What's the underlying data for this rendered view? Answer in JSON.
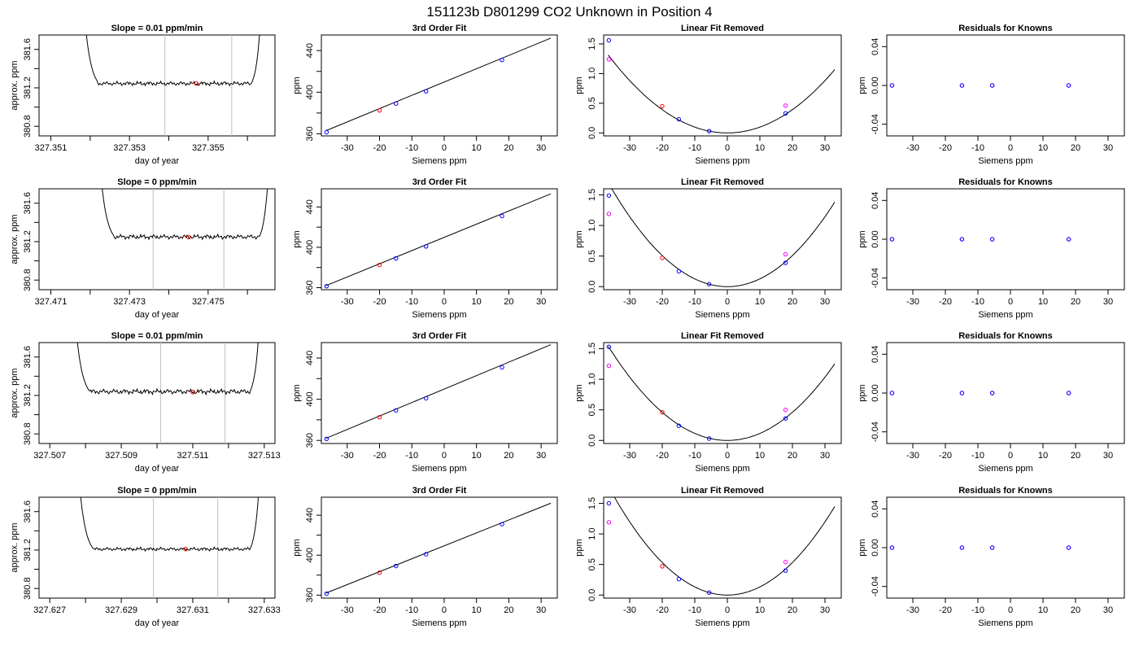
{
  "page_title": "151123b     D801299   CO2 Unknown in Position  4",
  "colors": {
    "line": "#000000",
    "grid_vline": "#bebebe",
    "known_point": "#0000ff",
    "unknown_point": "#ff0000",
    "fit_point": "#ff00ff"
  },
  "chart_data": [
    {
      "row": 1,
      "type": "line",
      "title": "Slope =  0.01  ppm/min",
      "xlabel": "day of year",
      "ylabel": "approx. ppm",
      "xlim": [
        327.3507,
        327.3567
      ],
      "ylim": [
        380.7,
        381.75
      ],
      "xticks": [
        327.351,
        327.352,
        327.353,
        327.354,
        327.355,
        327.356
      ],
      "xtick_labels": [
        "327.351",
        "",
        "327.353",
        "",
        "327.355",
        ""
      ],
      "yticks": [
        380.8,
        381.0,
        381.2,
        381.4,
        381.6
      ],
      "ytick_labels": [
        "380.8",
        "",
        "381.2",
        "",
        "381.6"
      ],
      "plateau": [
        327.3522,
        327.3561
      ],
      "level": 381.245,
      "amplitude": 0.018,
      "vlines": [
        327.3539,
        327.3556
      ],
      "marker": [
        327.3547,
        381.245
      ]
    },
    {
      "row": 1,
      "type": "scatter",
      "title": "3rd Order Fit",
      "xlabel": "Siemens ppm",
      "ylabel": "ppm",
      "xlim": [
        -38,
        35
      ],
      "ylim": [
        358,
        455
      ],
      "xticks": [
        -30,
        -20,
        -10,
        0,
        10,
        20,
        30
      ],
      "yticks": [
        360,
        380,
        400,
        420,
        440
      ],
      "ytick_labels": [
        "360",
        "",
        "400",
        "",
        "440"
      ],
      "line": [
        [
          -36.6,
          363
        ],
        [
          33,
          452
        ]
      ],
      "known": [
        [
          -36.4,
          361.5
        ],
        [
          -14.9,
          389.1
        ],
        [
          -5.6,
          400.9
        ],
        [
          17.9,
          431.0
        ]
      ],
      "unknown": [
        [
          -20.0,
          382.5
        ]
      ]
    },
    {
      "row": 1,
      "type": "scatter",
      "title": "Linear Fit Removed",
      "xlabel": "Siemens ppm",
      "ylabel": "ppm",
      "xlim": [
        -38,
        35
      ],
      "ylim": [
        -0.05,
        1.65
      ],
      "xticks": [
        -30,
        -20,
        -10,
        0,
        10,
        20,
        30
      ],
      "yticks": [
        0.0,
        0.5,
        1.0,
        1.5
      ],
      "ytick_labels": [
        "0.0",
        "0.5",
        "1.0",
        "1.5"
      ],
      "curve_a": 0.00098,
      "curve_x": [
        -36.6,
        33
      ],
      "known": [
        [
          -36.4,
          1.56
        ],
        [
          -14.9,
          0.23
        ],
        [
          -5.6,
          0.03
        ],
        [
          17.9,
          0.33
        ]
      ],
      "unknown": [
        [
          -20.0,
          0.45
        ]
      ],
      "fit": [
        [
          -36.4,
          1.24
        ],
        [
          17.9,
          0.46
        ]
      ]
    },
    {
      "row": 1,
      "type": "scatter",
      "title": "Residuals for Knowns",
      "xlabel": "Siemens ppm",
      "ylabel": "ppm",
      "xlim": [
        -38,
        35
      ],
      "ylim": [
        -0.052,
        0.052
      ],
      "xticks": [
        -30,
        -20,
        -10,
        0,
        10,
        20,
        30
      ],
      "yticks": [
        -0.04,
        0.0,
        0.04
      ],
      "ytick_labels": [
        "-0.04",
        "0.00",
        "0.04"
      ],
      "known": [
        [
          -36.4,
          0
        ],
        [
          -14.9,
          0
        ],
        [
          -5.6,
          0
        ],
        [
          17.9,
          0
        ]
      ]
    },
    {
      "row": 2,
      "type": "line",
      "title": "Slope =  0  ppm/min",
      "xlabel": "day of year",
      "ylabel": "approx. ppm",
      "xlim": [
        327.4707,
        327.4767
      ],
      "ylim": [
        380.7,
        381.75
      ],
      "xticks": [
        327.471,
        327.472,
        327.473,
        327.474,
        327.475,
        327.476
      ],
      "xtick_labels": [
        "327.471",
        "",
        "327.473",
        "",
        "327.475",
        ""
      ],
      "yticks": [
        380.8,
        381.0,
        381.2,
        381.4,
        381.6
      ],
      "ytick_labels": [
        "380.8",
        "",
        "381.2",
        "",
        "381.6"
      ],
      "plateau": [
        327.4726,
        327.4763
      ],
      "level": 381.25,
      "amplitude": 0.02,
      "vlines": [
        327.4736,
        327.4754
      ],
      "marker": [
        327.4745,
        381.248
      ]
    },
    {
      "row": 2,
      "type": "scatter",
      "title": "3rd Order Fit",
      "xlabel": "Siemens ppm",
      "ylabel": "ppm",
      "xlim": [
        -38,
        35
      ],
      "ylim": [
        358,
        458
      ],
      "xticks": [
        -30,
        -20,
        -10,
        0,
        10,
        20,
        30
      ],
      "yticks": [
        360,
        380,
        400,
        420,
        440
      ],
      "ytick_labels": [
        "360",
        "",
        "400",
        "",
        "440"
      ],
      "line": [
        [
          -36.6,
          362
        ],
        [
          33,
          453
        ]
      ],
      "known": [
        [
          -36.4,
          361.5
        ],
        [
          -14.9,
          389.1
        ],
        [
          -5.6,
          400.9
        ],
        [
          17.9,
          431.0
        ]
      ],
      "unknown": [
        [
          -20.0,
          382.5
        ]
      ]
    },
    {
      "row": 2,
      "type": "scatter",
      "title": "Linear Fit Removed",
      "xlabel": "Siemens ppm",
      "ylabel": "ppm",
      "xlim": [
        -38,
        35
      ],
      "ylim": [
        -0.05,
        1.6
      ],
      "xticks": [
        -30,
        -20,
        -10,
        0,
        10,
        20,
        30
      ],
      "yticks": [
        0.0,
        0.5,
        1.0,
        1.5
      ],
      "ytick_labels": [
        "0.0",
        "0.5",
        "1.0",
        "1.5"
      ],
      "curve_a": 0.00127,
      "curve_x": [
        -36.6,
        33
      ],
      "known": [
        [
          -36.4,
          1.49
        ],
        [
          -14.9,
          0.25
        ],
        [
          -5.6,
          0.04
        ],
        [
          17.9,
          0.39
        ]
      ],
      "unknown": [
        [
          -20.0,
          0.47
        ]
      ],
      "fit": [
        [
          -36.4,
          1.19
        ],
        [
          17.9,
          0.53
        ]
      ]
    },
    {
      "row": 2,
      "type": "scatter",
      "title": "Residuals for Knowns",
      "xlabel": "Siemens ppm",
      "ylabel": "ppm",
      "xlim": [
        -38,
        35
      ],
      "ylim": [
        -0.052,
        0.052
      ],
      "xticks": [
        -30,
        -20,
        -10,
        0,
        10,
        20,
        30
      ],
      "yticks": [
        -0.04,
        0.0,
        0.04
      ],
      "ytick_labels": [
        "-0.04",
        "0.00",
        "0.04"
      ],
      "known": [
        [
          -36.4,
          0
        ],
        [
          -14.9,
          0
        ],
        [
          -5.6,
          0
        ],
        [
          17.9,
          0
        ]
      ]
    },
    {
      "row": 3,
      "type": "line",
      "title": "Slope =  0.01  ppm/min",
      "xlabel": "day of year",
      "ylabel": "approx. ppm",
      "xlim": [
        327.5067,
        327.5133
      ],
      "ylim": [
        380.7,
        381.75
      ],
      "xticks": [
        327.507,
        327.508,
        327.509,
        327.51,
        327.511,
        327.512,
        327.513
      ],
      "xtick_labels": [
        "327.507",
        "",
        "327.509",
        "",
        "327.511",
        "",
        "327.513"
      ],
      "yticks": [
        380.8,
        381.0,
        381.2,
        381.4,
        381.6
      ],
      "ytick_labels": [
        "380.8",
        "",
        "381.2",
        "",
        "381.6"
      ],
      "plateau": [
        327.5081,
        327.5126
      ],
      "level": 381.24,
      "amplitude": 0.022,
      "vlines": [
        327.5101,
        327.5119
      ],
      "marker": [
        327.511,
        381.235
      ]
    },
    {
      "row": 3,
      "type": "scatter",
      "title": "3rd Order Fit",
      "xlabel": "Siemens ppm",
      "ylabel": "ppm",
      "xlim": [
        -38,
        35
      ],
      "ylim": [
        357,
        455
      ],
      "xticks": [
        -30,
        -20,
        -10,
        0,
        10,
        20,
        30
      ],
      "yticks": [
        360,
        380,
        400,
        420,
        440
      ],
      "ytick_labels": [
        "360",
        "",
        "400",
        "",
        "440"
      ],
      "line": [
        [
          -36.6,
          362
        ],
        [
          33,
          453
        ]
      ],
      "known": [
        [
          -36.4,
          361.5
        ],
        [
          -14.9,
          389.1
        ],
        [
          -5.6,
          400.9
        ],
        [
          17.9,
          431.0
        ]
      ],
      "unknown": [
        [
          -20.0,
          382.5
        ]
      ]
    },
    {
      "row": 3,
      "type": "scatter",
      "title": "Linear Fit Removed",
      "xlabel": "Siemens ppm",
      "ylabel": "ppm",
      "xlim": [
        -38,
        35
      ],
      "ylim": [
        -0.05,
        1.6
      ],
      "xticks": [
        -30,
        -20,
        -10,
        0,
        10,
        20,
        30
      ],
      "yticks": [
        0.0,
        0.5,
        1.0,
        1.5
      ],
      "ytick_labels": [
        "0.0",
        "0.5",
        "1.0",
        "1.5"
      ],
      "curve_a": 0.00115,
      "curve_x": [
        -36.6,
        33
      ],
      "known": [
        [
          -36.4,
          1.53
        ],
        [
          -14.9,
          0.24
        ],
        [
          -5.6,
          0.03
        ],
        [
          17.9,
          0.36
        ]
      ],
      "unknown": [
        [
          -20.0,
          0.46
        ]
      ],
      "fit": [
        [
          -36.4,
          1.22
        ],
        [
          17.9,
          0.5
        ]
      ]
    },
    {
      "row": 3,
      "type": "scatter",
      "title": "Residuals for Knowns",
      "xlabel": "Siemens ppm",
      "ylabel": "ppm",
      "xlim": [
        -38,
        35
      ],
      "ylim": [
        -0.052,
        0.052
      ],
      "xticks": [
        -30,
        -20,
        -10,
        0,
        10,
        20,
        30
      ],
      "yticks": [
        -0.04,
        0.0,
        0.04
      ],
      "ytick_labels": [
        "-0.04",
        "0.00",
        "0.04"
      ],
      "known": [
        [
          -36.4,
          0
        ],
        [
          -14.9,
          0
        ],
        [
          -5.6,
          0
        ],
        [
          17.9,
          0
        ]
      ]
    },
    {
      "row": 4,
      "type": "line",
      "title": "Slope =  0  ppm/min",
      "xlabel": "day of year",
      "ylabel": "approx. ppm",
      "xlim": [
        327.6267,
        327.6333
      ],
      "ylim": [
        380.7,
        381.75
      ],
      "xticks": [
        327.627,
        327.628,
        327.629,
        327.63,
        327.631,
        327.632,
        327.633
      ],
      "xtick_labels": [
        "327.627",
        "",
        "327.629",
        "",
        "327.631",
        "",
        "327.633"
      ],
      "yticks": [
        380.8,
        381.0,
        381.2,
        381.4,
        381.6
      ],
      "ytick_labels": [
        "380.8",
        "",
        "381.2",
        "",
        "381.6"
      ],
      "plateau": [
        327.6282,
        327.6326
      ],
      "level": 381.21,
      "amplitude": 0.015,
      "vlines": [
        327.6299,
        327.6317
      ],
      "marker": [
        327.6308,
        381.21
      ]
    },
    {
      "row": 4,
      "type": "scatter",
      "title": "3rd Order Fit",
      "xlabel": "Siemens ppm",
      "ylabel": "ppm",
      "xlim": [
        -38,
        35
      ],
      "ylim": [
        357,
        458
      ],
      "xticks": [
        -30,
        -20,
        -10,
        0,
        10,
        20,
        30
      ],
      "yticks": [
        360,
        380,
        400,
        420,
        440
      ],
      "ytick_labels": [
        "360",
        "",
        "400",
        "",
        "440"
      ],
      "line": [
        [
          -36.6,
          362
        ],
        [
          33,
          452
        ]
      ],
      "known": [
        [
          -36.4,
          361.5
        ],
        [
          -14.9,
          389.1
        ],
        [
          -5.6,
          400.9
        ],
        [
          17.9,
          431.0
        ]
      ],
      "unknown": [
        [
          -20.0,
          382.5
        ]
      ]
    },
    {
      "row": 4,
      "type": "scatter",
      "title": "Linear Fit Removed",
      "xlabel": "Siemens ppm",
      "ylabel": "ppm",
      "xlim": [
        -38,
        35
      ],
      "ylim": [
        -0.05,
        1.6
      ],
      "xticks": [
        -30,
        -20,
        -10,
        0,
        10,
        20,
        30
      ],
      "yticks": [
        0.0,
        0.5,
        1.0,
        1.5
      ],
      "ytick_labels": [
        "0.0",
        "0.5",
        "1.0",
        "1.5"
      ],
      "curve_a": 0.00133,
      "curve_x": [
        -36.6,
        33
      ],
      "known": [
        [
          -36.4,
          1.5
        ],
        [
          -14.9,
          0.26
        ],
        [
          -5.6,
          0.04
        ],
        [
          17.9,
          0.4
        ]
      ],
      "unknown": [
        [
          -20.0,
          0.47
        ]
      ],
      "fit": [
        [
          -36.4,
          1.19
        ],
        [
          17.9,
          0.54
        ]
      ]
    },
    {
      "row": 4,
      "type": "scatter",
      "title": "Residuals for Knowns",
      "xlabel": "Siemens ppm",
      "ylabel": "ppm",
      "xlim": [
        -38,
        35
      ],
      "ylim": [
        -0.052,
        0.052
      ],
      "xticks": [
        -30,
        -20,
        -10,
        0,
        10,
        20,
        30
      ],
      "yticks": [
        -0.04,
        0.0,
        0.04
      ],
      "ytick_labels": [
        "-0.04",
        "0.00",
        "0.04"
      ],
      "known": [
        [
          -36.4,
          0
        ],
        [
          -14.9,
          0
        ],
        [
          -5.6,
          0
        ],
        [
          17.9,
          0
        ]
      ]
    }
  ]
}
